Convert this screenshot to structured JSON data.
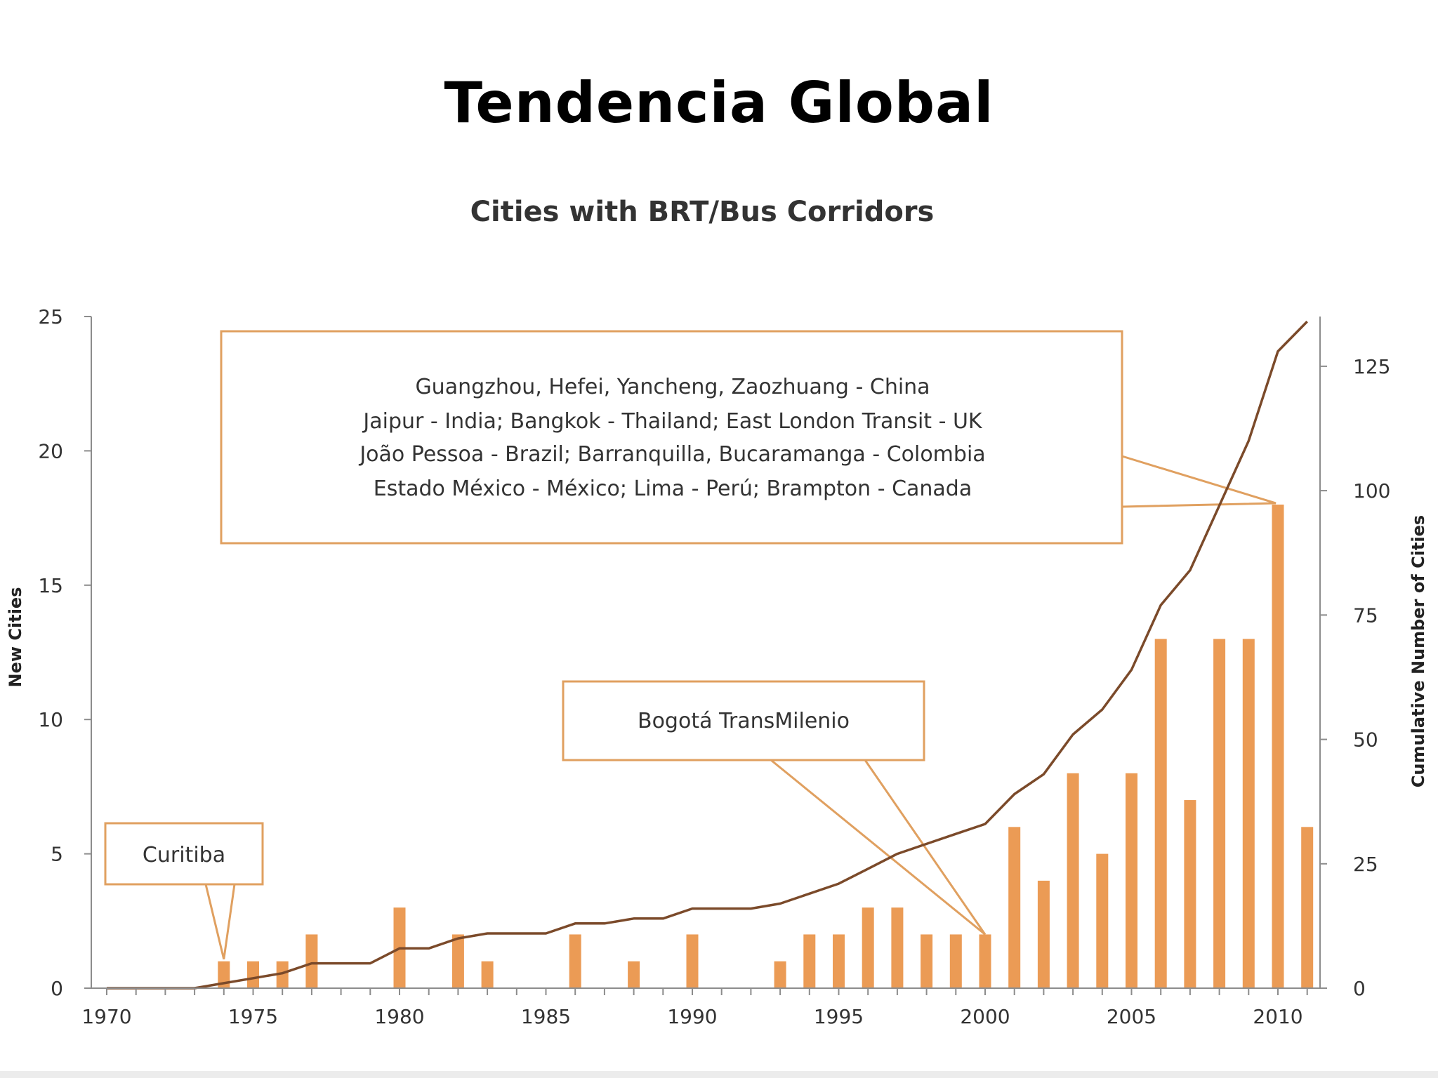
{
  "slide": {
    "title": "Tendencia Global"
  },
  "colors": {
    "bar": "#EB9B55",
    "line": "#7B4A2A",
    "callout_border": "#E0A060",
    "axis": "#8c8c8c",
    "text": "#333333"
  },
  "chart_data": {
    "type": "bar",
    "title": "Cities with BRT/Bus Corridors",
    "ylabel": "New Cities",
    "y2label": "Cumulative Number of Cities",
    "ylim": [
      0,
      25
    ],
    "y2lim": [
      0,
      135
    ],
    "xlim": [
      1970,
      2011
    ],
    "yticks": [
      0,
      5,
      10,
      15,
      20,
      25
    ],
    "y2ticks": [
      0,
      25,
      50,
      75,
      100,
      125
    ],
    "xticks": [
      1970,
      1975,
      1980,
      1985,
      1990,
      1995,
      2000,
      2005,
      2010
    ],
    "grid": false,
    "x": [
      1970,
      1971,
      1972,
      1973,
      1974,
      1975,
      1976,
      1977,
      1978,
      1979,
      1980,
      1981,
      1982,
      1983,
      1984,
      1985,
      1986,
      1987,
      1988,
      1989,
      1990,
      1991,
      1992,
      1993,
      1994,
      1995,
      1996,
      1997,
      1998,
      1999,
      2000,
      2001,
      2002,
      2003,
      2004,
      2005,
      2006,
      2007,
      2008,
      2009,
      2010,
      2011
    ],
    "series": [
      {
        "type": "bar",
        "axis": "left",
        "values": [
          0,
          0,
          0,
          0,
          1,
          1,
          1,
          2,
          0,
          0,
          3,
          0,
          2,
          1,
          0,
          0,
          2,
          0,
          1,
          0,
          2,
          0,
          0,
          1,
          2,
          2,
          3,
          3,
          2,
          2,
          2,
          6,
          4,
          8,
          5,
          8,
          13,
          7,
          13,
          13,
          18,
          6
        ]
      },
      {
        "type": "line",
        "axis": "right",
        "values": [
          0,
          0,
          0,
          0,
          1,
          2,
          3,
          5,
          5,
          5,
          8,
          8,
          10,
          11,
          11,
          11,
          13,
          13,
          14,
          14,
          16,
          16,
          16,
          17,
          19,
          21,
          24,
          27,
          29,
          31,
          33,
          39,
          43,
          51,
          56,
          64,
          77,
          84,
          97,
          110,
          128,
          134
        ]
      }
    ],
    "annotations": [
      {
        "text": "Curitiba",
        "x": 1974
      },
      {
        "text": "Bogotá TransMilenio",
        "x": 2000
      },
      {
        "lines": [
          "Guangzhou, Hefei, Yancheng,  Zaozhuang - China",
          "Jaipur - India;  Bangkok - Thailand; East London Transit - UK",
          "João Pessoa - Brazil; Barranquilla,  Bucaramanga - Colombia",
          "Estado México -  México; Lima - Perú; Brampton - Canada"
        ],
        "x": 2010
      }
    ]
  }
}
